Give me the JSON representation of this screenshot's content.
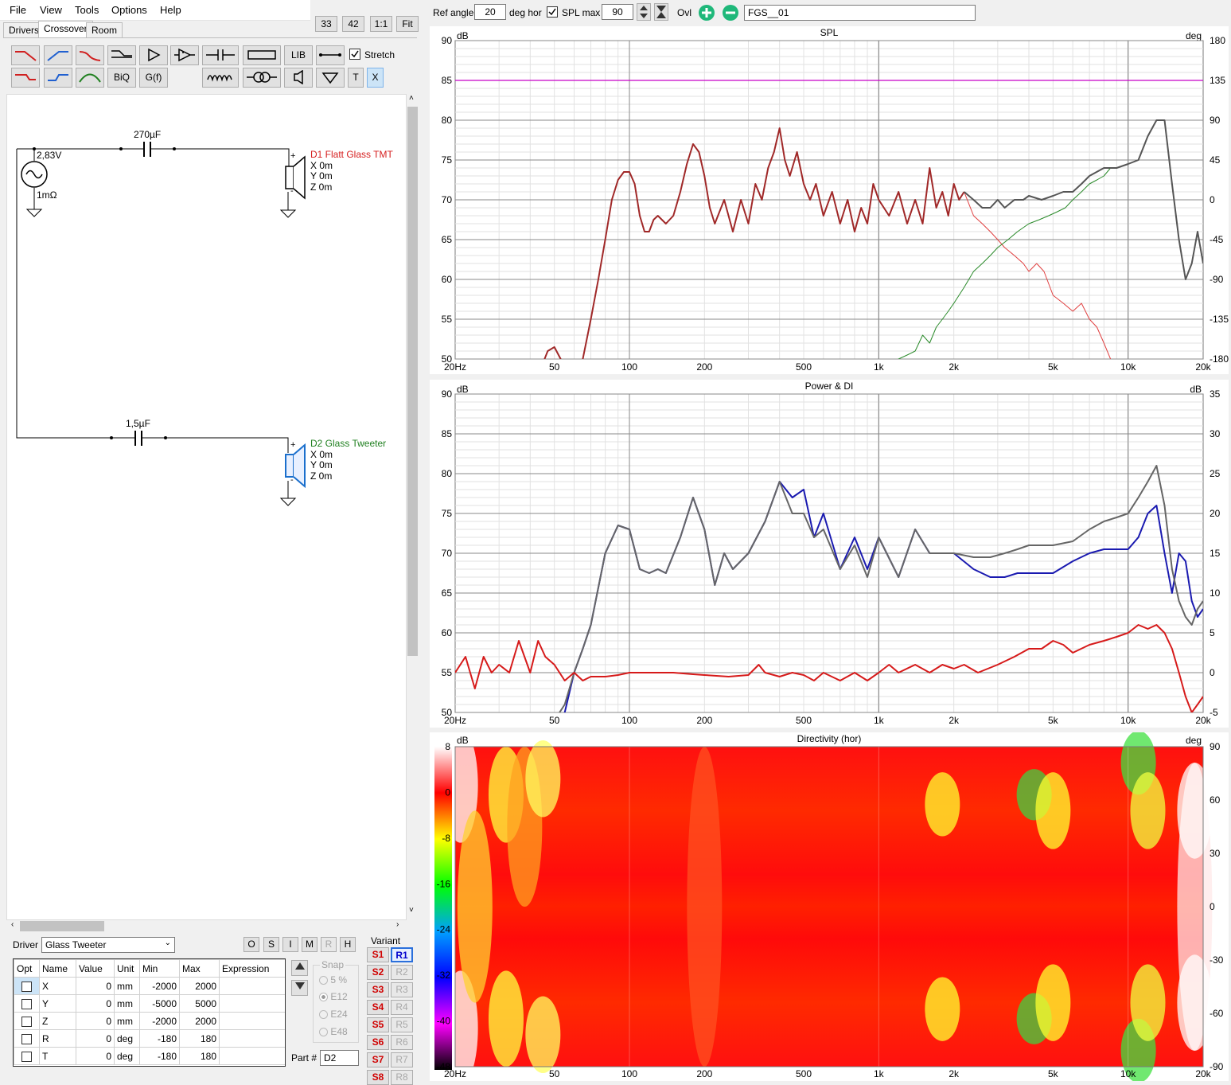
{
  "menu": [
    "File",
    "View",
    "Tools",
    "Options",
    "Help"
  ],
  "tabs": [
    "Drivers",
    "Crossover",
    "Room"
  ],
  "zoom_buttons": [
    "33",
    "42",
    "1:1",
    "Fit"
  ],
  "toolbar": {
    "lib": "LIB",
    "biq": "BiQ",
    "gf": "G(f)",
    "t": "T",
    "x": "X",
    "stretch_label": "Stretch"
  },
  "schematic": {
    "source_voltage": "2,83V",
    "source_resistance": "1mΩ",
    "cap1": "270µF",
    "cap2": "1,5µF",
    "d1_name": "D1 Flatt Glass TMT",
    "d2_name": "D2 Glass Tweeter",
    "coords": [
      "X  0m",
      "Y  0m",
      "Z  0m"
    ],
    "plus": "+",
    "minus": "-"
  },
  "topbar": {
    "ref_angle_label": "Ref angle",
    "ref_angle": "20",
    "deg_hor": "deg hor",
    "spl_max_label": "SPL max",
    "spl_max": "90",
    "ovl": "Ovl",
    "name": "FGS__01"
  },
  "driver_panel": {
    "driver_label": "Driver",
    "driver": "Glass Tweeter",
    "buttons": [
      "O",
      "S",
      "I",
      "M",
      "R",
      "H"
    ],
    "headers": [
      "Opt",
      "Name",
      "Value",
      "Unit",
      "Min",
      "Max",
      "Expression"
    ],
    "rows": [
      {
        "name": "X",
        "value": "0",
        "unit": "mm",
        "min": "-2000",
        "max": "2000"
      },
      {
        "name": "Y",
        "value": "0",
        "unit": "mm",
        "min": "-5000",
        "max": "5000"
      },
      {
        "name": "Z",
        "value": "0",
        "unit": "mm",
        "min": "-2000",
        "max": "2000"
      },
      {
        "name": "R",
        "value": "0",
        "unit": "deg",
        "min": "-180",
        "max": "180"
      },
      {
        "name": "T",
        "value": "0",
        "unit": "deg",
        "min": "-180",
        "max": "180"
      }
    ],
    "snap_label": "Snap",
    "snap_options": [
      "5 %",
      "E12",
      "E24",
      "E48"
    ],
    "part_label": "Part #",
    "part": "D2",
    "variant_label": "Variant",
    "s_buttons": [
      "S1",
      "S2",
      "S3",
      "S4",
      "S5",
      "S6",
      "S7",
      "S8"
    ],
    "r_buttons": [
      "R1",
      "R2",
      "R3",
      "R4",
      "R5",
      "R6",
      "R7",
      "R8"
    ]
  },
  "chart_data": [
    {
      "type": "line",
      "title": "SPL",
      "xlabel": "",
      "ylabel": "dB",
      "y2label": "deg",
      "xscale": "log",
      "xlim": [
        20,
        20000
      ],
      "ylim": [
        50,
        90
      ],
      "y2lim": [
        -180,
        180
      ],
      "xticks": [
        "20Hz",
        "50",
        "100",
        "200",
        "500",
        "1k",
        "2k",
        "5k",
        "10k",
        "20k"
      ],
      "yticks": [
        "50",
        "55",
        "60",
        "65",
        "70",
        "75",
        "80",
        "85",
        "90"
      ],
      "y2ticks": [
        "-180",
        "-135",
        "-90",
        "-45",
        "0",
        "45",
        "90",
        "135",
        "180"
      ],
      "reference_level": 85,
      "series": [
        {
          "color": "#a02828",
          "width": 2,
          "x": [
            45,
            47,
            50,
            53,
            57,
            60,
            65,
            70,
            75,
            80,
            85,
            90,
            95,
            100,
            105,
            110,
            115,
            120,
            125,
            130,
            135,
            140,
            150,
            160,
            170,
            180,
            190,
            200,
            210,
            220,
            240,
            260,
            280,
            300,
            320,
            340,
            360,
            380,
            400,
            420,
            440,
            470,
            500,
            530,
            560,
            600,
            650,
            700,
            750,
            800,
            850,
            900,
            950,
            1000,
            1100,
            1200,
            1300,
            1400,
            1500,
            1600,
            1700,
            1800,
            1900,
            2000,
            2100,
            2200
          ],
          "y": [
            49.5,
            51,
            51.5,
            50,
            46,
            44,
            50,
            55,
            60,
            65,
            70,
            72.5,
            73.5,
            73.5,
            72,
            68,
            66,
            66,
            67.5,
            68,
            67.5,
            67,
            68,
            71,
            74.5,
            77,
            76,
            73,
            69,
            67,
            70,
            66,
            70,
            67,
            72,
            70,
            74,
            76,
            79,
            75,
            73,
            76,
            72,
            70,
            72,
            68,
            71,
            67,
            70,
            66,
            69,
            67,
            72,
            70,
            68,
            71,
            67,
            70,
            67,
            74,
            69,
            71,
            68,
            72,
            70,
            71
          ]
        },
        {
          "color": "#e04040",
          "width": 1,
          "x": [
            2200,
            2400,
            2600,
            2800,
            3000,
            3200,
            3500,
            3800,
            4000,
            4300,
            4600,
            5000,
            5500,
            6000,
            6500,
            7000,
            7500,
            8000,
            8500,
            9000
          ],
          "y": [
            71,
            68,
            67,
            66,
            65,
            64,
            63,
            62,
            61,
            62,
            61,
            58,
            57,
            56,
            57,
            55,
            54,
            52,
            50,
            48
          ]
        },
        {
          "color": "#2a8a2a",
          "width": 1,
          "x": [
            1100,
            1200,
            1300,
            1400,
            1500,
            1600,
            1700,
            1800,
            1900,
            2000,
            2200,
            2400,
            2600,
            2800,
            3000,
            3300,
            3600,
            4000,
            4400,
            4800,
            5200,
            5600,
            6000,
            6500,
            7000,
            7500,
            8000,
            8500
          ],
          "y": [
            49,
            50,
            50.5,
            51,
            53,
            52,
            54,
            55,
            56,
            57,
            59,
            61,
            62,
            63,
            64,
            65,
            66,
            67,
            67.5,
            68,
            68.5,
            69,
            70,
            71,
            72,
            72.5,
            73,
            74
          ]
        },
        {
          "color": "#555555",
          "width": 2,
          "x": [
            2200,
            2400,
            2600,
            2800,
            3000,
            3200,
            3500,
            3800,
            4000,
            4500,
            5000,
            5500,
            6000,
            6500,
            7000,
            8000,
            9000,
            10000,
            11000,
            12000,
            13000,
            14000,
            15000,
            16000,
            17000,
            18000,
            19000,
            20000
          ],
          "y": [
            71,
            70,
            69,
            69,
            70,
            69,
            70,
            70,
            70.5,
            70,
            70.5,
            71,
            71,
            72,
            73,
            74,
            74,
            74.5,
            75,
            78,
            80,
            80,
            72,
            65,
            60,
            62,
            66,
            62
          ]
        }
      ]
    },
    {
      "type": "line",
      "title": "Power & DI",
      "xlabel": "",
      "ylabel": "dB",
      "y2label": "dB",
      "xscale": "log",
      "xlim": [
        20,
        20000
      ],
      "ylim": [
        50,
        90
      ],
      "y2lim": [
        -5,
        35
      ],
      "xticks": [
        "20Hz",
        "50",
        "100",
        "200",
        "500",
        "1k",
        "2k",
        "5k",
        "10k",
        "20k"
      ],
      "yticks": [
        "50",
        "55",
        "60",
        "65",
        "70",
        "75",
        "80",
        "85",
        "90"
      ],
      "y2ticks": [
        "-5",
        "0",
        "5",
        "10",
        "15",
        "20",
        "25",
        "30",
        "35"
      ],
      "series": [
        {
          "color": "#1a1ab0",
          "width": 2,
          "x": [
            50,
            55,
            60,
            65,
            70,
            80,
            90,
            100,
            110,
            120,
            130,
            140,
            160,
            180,
            200,
            220,
            240,
            260,
            300,
            350,
            400,
            450,
            500,
            550,
            600,
            700,
            800,
            900,
            1000,
            1200,
            1400,
            1600,
            1800,
            2000,
            2400,
            2800,
            3200,
            3600,
            4000,
            5000,
            6000,
            7000,
            8000,
            9000,
            10000,
            11000,
            12000,
            13000,
            14000,
            15000,
            16000,
            17000,
            18000,
            19000,
            20000
          ],
          "y": [
            49,
            50,
            55,
            58,
            61,
            70,
            73.5,
            73,
            68,
            67.5,
            68,
            67.5,
            72,
            77,
            73,
            66,
            70,
            68,
            70,
            74,
            79,
            77,
            78,
            72,
            75,
            68,
            72,
            68,
            72,
            67,
            73,
            70,
            70,
            70,
            68,
            67,
            67,
            67.5,
            67.5,
            67.5,
            69,
            70,
            70.5,
            70.5,
            70.5,
            72,
            75,
            76,
            70,
            65,
            70,
            69,
            64,
            62,
            63
          ]
        },
        {
          "color": "#666666",
          "width": 2,
          "x": [
            50,
            55,
            60,
            65,
            70,
            80,
            90,
            100,
            110,
            120,
            130,
            140,
            160,
            180,
            200,
            220,
            240,
            260,
            300,
            350,
            400,
            450,
            500,
            550,
            600,
            700,
            800,
            900,
            1000,
            1200,
            1400,
            1600,
            1800,
            2000,
            2400,
            2800,
            3200,
            3600,
            4000,
            5000,
            6000,
            7000,
            8000,
            9000,
            10000,
            11000,
            12000,
            13000,
            14000,
            15000,
            16000,
            17000,
            18000,
            19000,
            20000
          ],
          "y": [
            49,
            51,
            55,
            58,
            61,
            70,
            73.5,
            73,
            68,
            67.5,
            68,
            67.5,
            72,
            77,
            73,
            66,
            70,
            68,
            70,
            74,
            79,
            75,
            75,
            72,
            73,
            68,
            71,
            67,
            72,
            67,
            73,
            70,
            70,
            70,
            69.5,
            69.5,
            70,
            70.5,
            71,
            71,
            71.5,
            73,
            74,
            74.5,
            75,
            77,
            79,
            81,
            76,
            68,
            64,
            62,
            61,
            63,
            64
          ]
        },
        {
          "color": "#d61a1a",
          "width": 2,
          "x": [
            20,
            22,
            24,
            26,
            28,
            30,
            33,
            36,
            40,
            43,
            46,
            50,
            55,
            60,
            65,
            70,
            75,
            80,
            90,
            100,
            120,
            150,
            180,
            200,
            250,
            300,
            330,
            350,
            400,
            450,
            500,
            550,
            600,
            700,
            800,
            900,
            1000,
            1100,
            1200,
            1400,
            1600,
            1800,
            2000,
            2200,
            2500,
            3000,
            3500,
            4000,
            4500,
            5000,
            5500,
            6000,
            7000,
            8000,
            9000,
            10000,
            11000,
            12000,
            13000,
            14000,
            15000,
            16000,
            17000,
            18000,
            19000,
            20000
          ],
          "y": [
            55,
            57,
            53,
            57,
            55,
            56,
            55,
            59,
            55,
            59,
            57,
            56,
            54,
            55,
            54,
            54.5,
            54.5,
            54.5,
            54.7,
            55,
            55,
            55,
            54.8,
            54.7,
            54.5,
            54.7,
            56,
            55,
            54.5,
            55,
            54.7,
            54,
            55,
            54,
            55,
            54,
            55,
            56,
            55,
            56,
            55,
            56,
            55.5,
            56,
            55,
            56,
            57,
            58,
            58,
            59,
            58.5,
            57.5,
            58.5,
            59,
            59.5,
            60,
            61,
            60.5,
            61,
            60,
            58,
            55,
            52,
            50,
            51,
            52
          ]
        }
      ]
    },
    {
      "type": "heatmap",
      "title": "Directivity (hor)",
      "xlabel": "",
      "ylabel": "dB",
      "y2label": "deg",
      "xscale": "log",
      "xlim": [
        20,
        20000
      ],
      "y2lim": [
        -90,
        90
      ],
      "xticks": [
        "20Hz",
        "50",
        "100",
        "200",
        "500",
        "1k",
        "2k",
        "5k",
        "10k",
        "20k"
      ],
      "colorbar_ticks": [
        "8",
        "0",
        "-8",
        "-16",
        "-24",
        "-32",
        "-40",
        "-48"
      ],
      "y2ticks": [
        "90",
        "60",
        "30",
        "0",
        "-30",
        "-60",
        "-90"
      ],
      "colorbar_colors": [
        "#ffffff",
        "#ff0000",
        "#ffff00",
        "#00ff00",
        "#00a0ff",
        "#0000ff",
        "#ff00ff",
        "#000000"
      ]
    }
  ]
}
